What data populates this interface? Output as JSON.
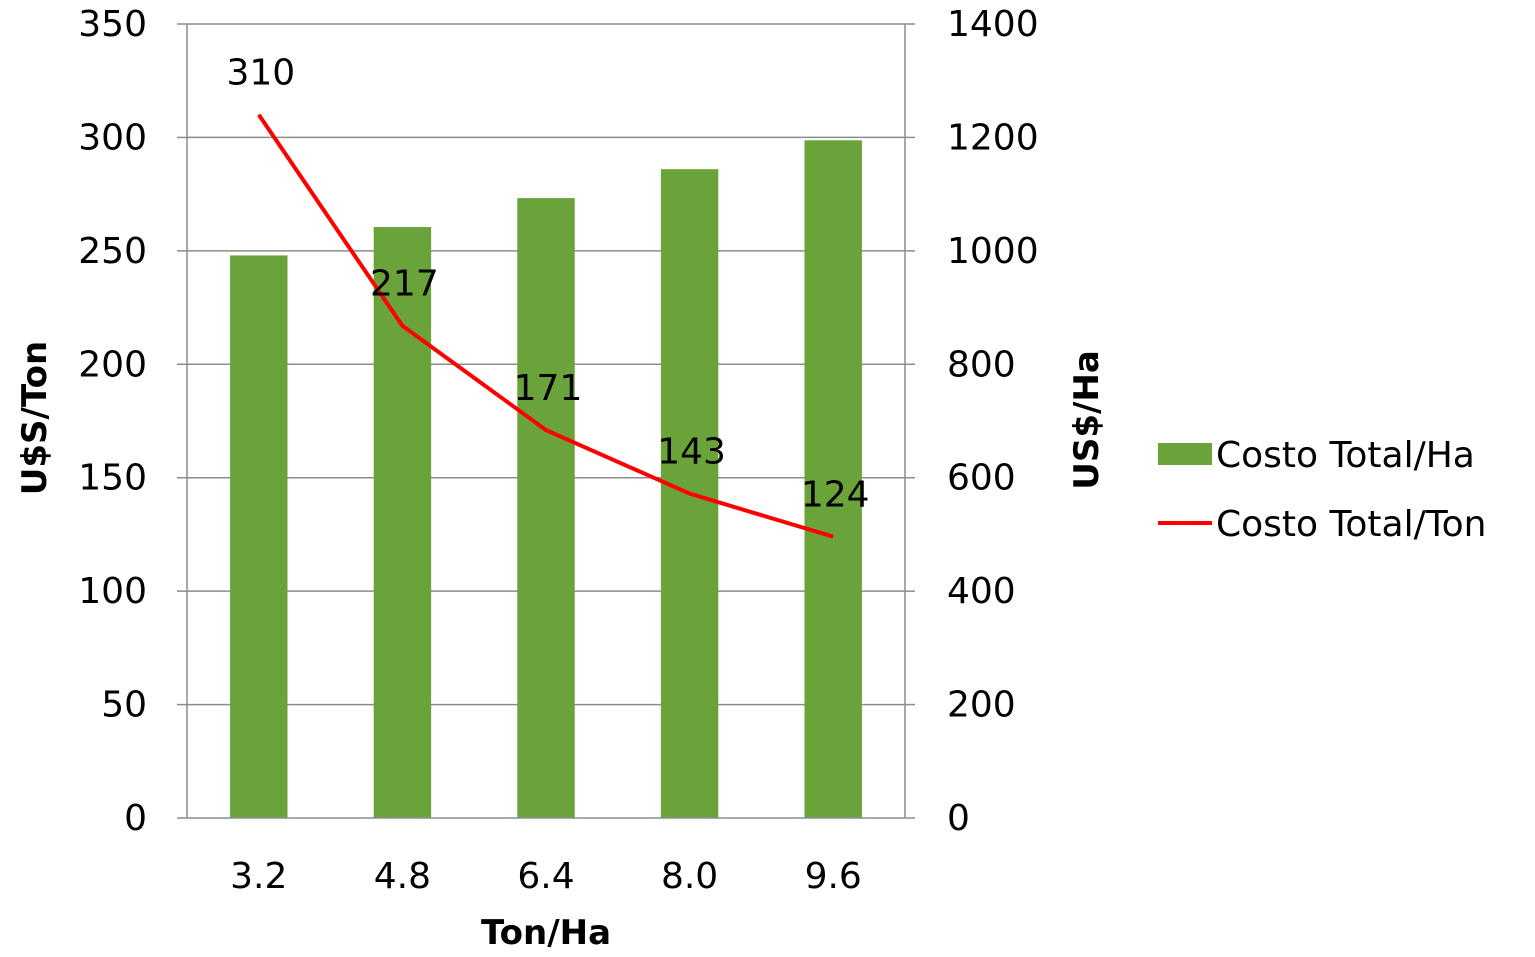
{
  "chart_data": {
    "type": "bar",
    "categories": [
      "3.2",
      "4.8",
      "6.4",
      "8.0",
      "9.6"
    ],
    "xlabel": "Ton/Ha",
    "ylabel_left": "U$S/Ton",
    "ylabel_right": "US$/Ha",
    "ylim_left": [
      0,
      350
    ],
    "ylim_right": [
      0,
      1400
    ],
    "yticks_left": [
      "0",
      "50",
      "100",
      "150",
      "200",
      "250",
      "300",
      "350"
    ],
    "yticks_right": [
      "0",
      "200",
      "400",
      "600",
      "800",
      "1000",
      "1200",
      "1400"
    ],
    "grid": true,
    "legend_position": "right",
    "series": [
      {
        "name": "Costo Total/Ha",
        "type": "bar",
        "axis": "right",
        "color": "#6aa33a",
        "values": [
          992,
          1042,
          1093,
          1144,
          1195
        ]
      },
      {
        "name": "Costo Total/Ton",
        "type": "line",
        "axis": "left",
        "color": "#ff0000",
        "values": [
          310,
          217,
          171,
          143,
          124
        ],
        "data_labels": [
          "310",
          "217",
          "171",
          "143",
          "124"
        ]
      }
    ]
  }
}
